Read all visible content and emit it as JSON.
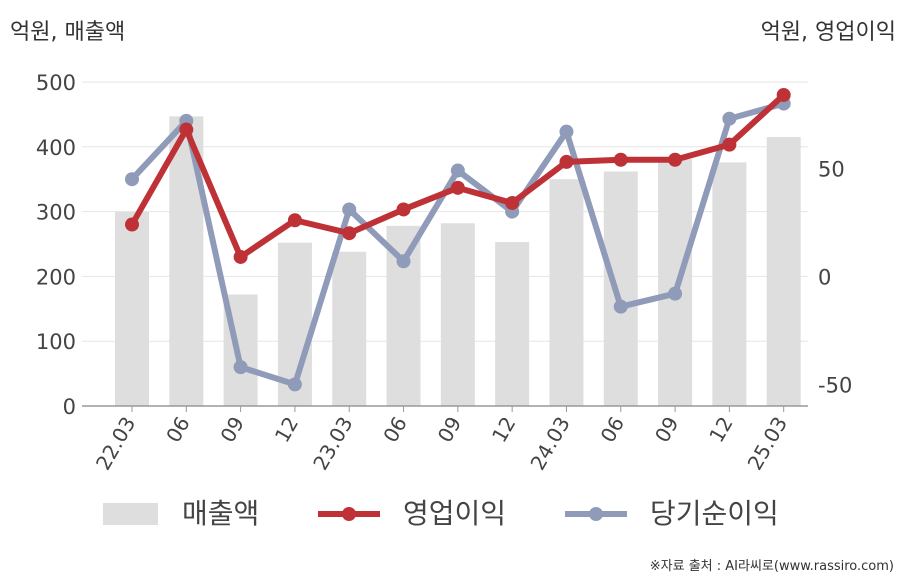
{
  "unit_left": "억원, 매출액",
  "unit_right": "억원, 영업이익",
  "source": "※자료 출처 : AI라씨로(www.rassiro.com)",
  "chart_data": {
    "type": "bar",
    "categories": [
      "22.03",
      "06",
      "09",
      "12",
      "23.03",
      "06",
      "09",
      "12",
      "24.03",
      "06",
      "09",
      "12",
      "25.03"
    ],
    "left_axis": {
      "ylim": [
        0,
        500
      ],
      "ticks": [
        "500",
        "400",
        "300",
        "200",
        "100",
        "0"
      ]
    },
    "right_axis": {
      "ylim": [
        -60,
        90
      ],
      "ticks": [
        "50",
        "0",
        "-50"
      ]
    },
    "series": [
      {
        "name": "매출액",
        "type": "bar",
        "axis": "left",
        "color": "#dedede",
        "values": [
          300,
          447,
          172,
          252,
          238,
          278,
          282,
          253,
          350,
          362,
          381,
          376,
          415
        ]
      },
      {
        "name": "영업이익",
        "type": "line",
        "axis": "right",
        "color": "#be3237",
        "values": [
          24,
          68,
          9,
          26,
          20,
          31,
          41,
          34,
          53,
          54,
          54,
          61,
          84
        ]
      },
      {
        "name": "당기순이익",
        "type": "line",
        "axis": "right",
        "color": "#8f9bb8",
        "values": [
          45,
          72,
          -42,
          -50,
          31,
          7,
          49,
          30,
          67,
          -14,
          -8,
          73,
          80
        ]
      }
    ],
    "grid": true,
    "legend": "bottom"
  }
}
